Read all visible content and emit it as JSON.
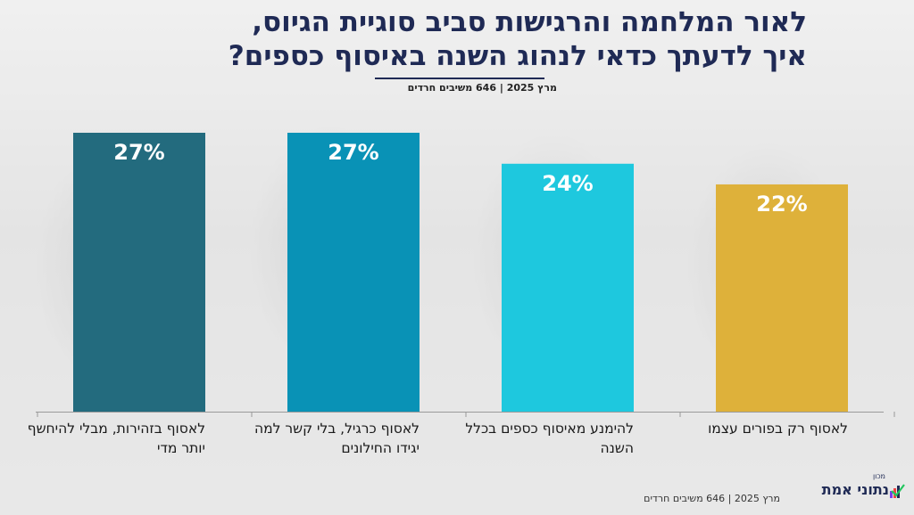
{
  "chart_data": {
    "type": "bar",
    "title": "לאור המלחמה והרגישות סביב סוגיית הגיוס, איך לדעתך כדאי לנהוג השנה באיסוף כספים?",
    "title_lines": [
      "לאור המלחמה והרגישות סביב סוגיית הגיוס,",
      "איך לדעתך כדאי לנהוג השנה באיסוף כספים?"
    ],
    "subtitle": "מרץ 2025 | 646 משיבים חרדים",
    "categories": [
      "לאסוף בזהירות, מבלי להיחשף יותר מדי",
      "לאסוף כרגיל, בלי קשר למה יגידו החילונים",
      "להימנע מאיסוף כספים בכלל השנה",
      "לאסוף רק בפורים עצמו"
    ],
    "values": [
      27,
      27,
      24,
      22
    ],
    "value_labels": [
      "27%",
      "27%",
      "24%",
      "22%"
    ],
    "colors": [
      "#236b7e",
      "#0992b6",
      "#1ec8de",
      "#deb13a"
    ],
    "ylim": [
      0,
      27
    ],
    "grid": false,
    "legend": "none"
  },
  "footer": {
    "text": "מרץ 2025 | 646 משיבים חרדים"
  },
  "logo": {
    "small": "מכון",
    "main": "נתוני אמת"
  }
}
